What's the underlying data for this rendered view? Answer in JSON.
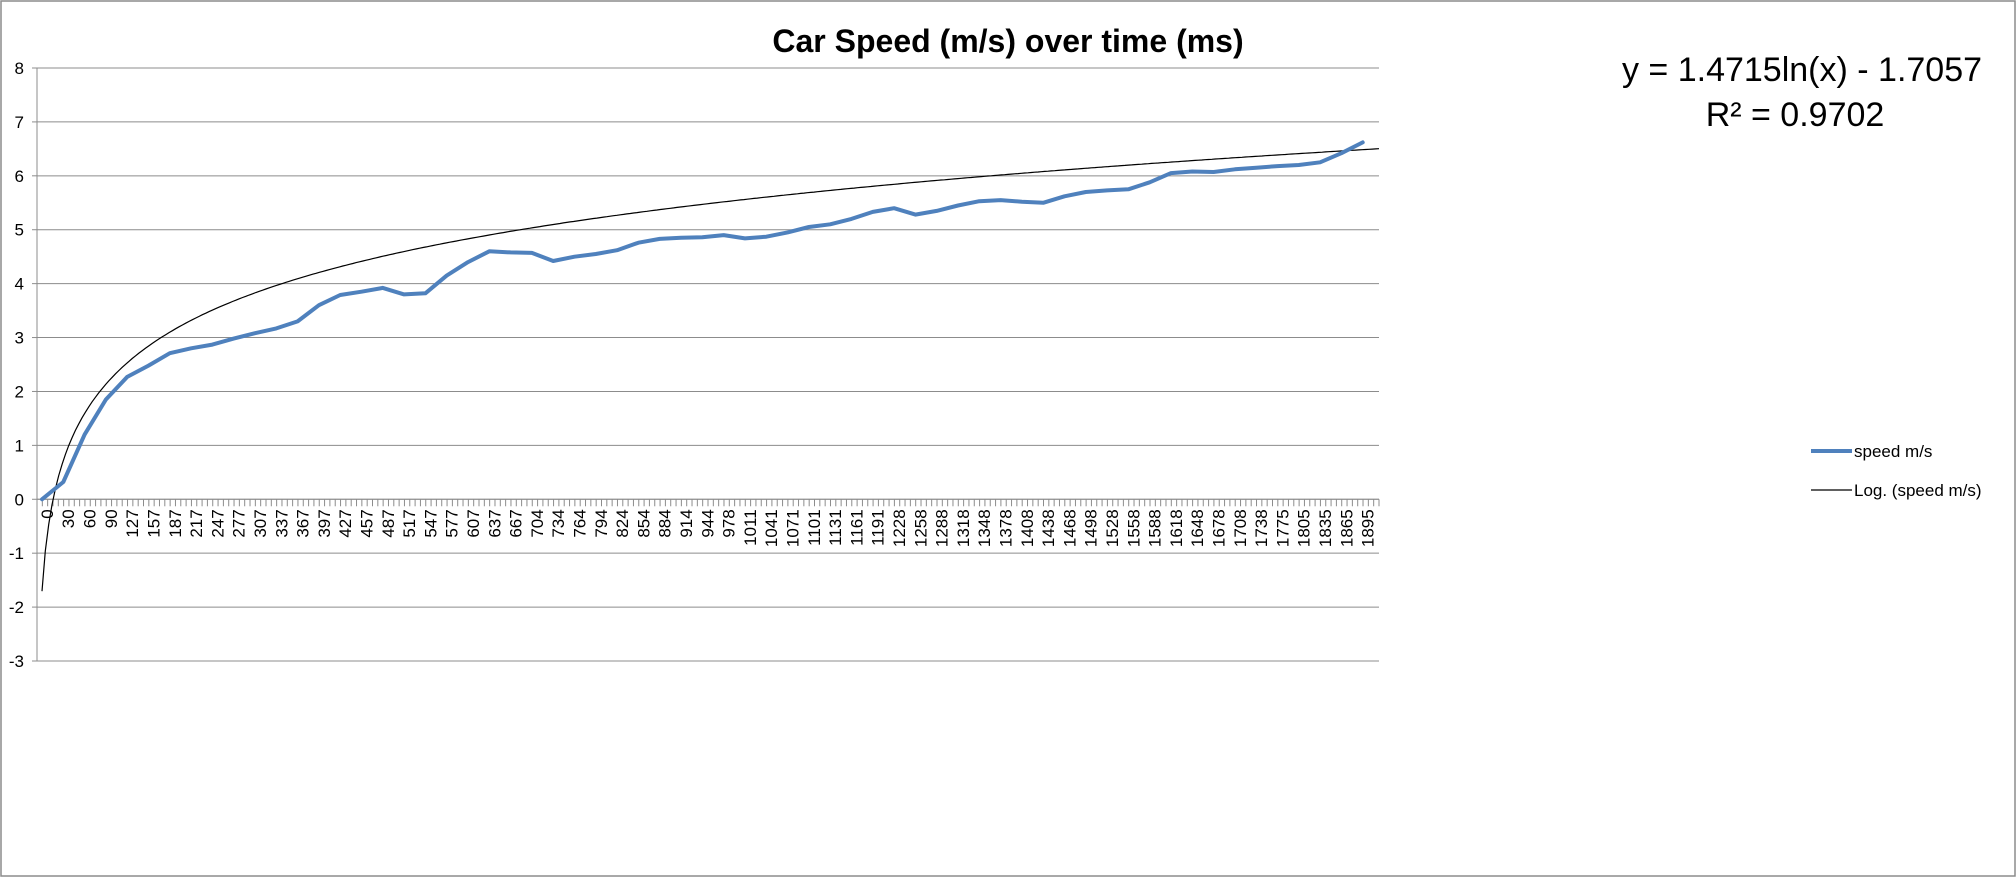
{
  "chart_data": {
    "type": "line",
    "title": "Car Speed (m/s) over time (ms)",
    "xlabel": "",
    "ylabel": "",
    "ylim": [
      -3,
      8
    ],
    "yticks": [
      "8",
      "7",
      "6",
      "5",
      "4",
      "3",
      "2",
      "1",
      "0",
      "-1",
      "-2",
      "-3"
    ],
    "grid": true,
    "legend_position": "right",
    "categories": [
      "0",
      "30",
      "60",
      "90",
      "127",
      "157",
      "187",
      "217",
      "247",
      "277",
      "307",
      "337",
      "367",
      "397",
      "427",
      "457",
      "487",
      "517",
      "547",
      "577",
      "607",
      "637",
      "667",
      "704",
      "734",
      "764",
      "794",
      "824",
      "854",
      "884",
      "914",
      "944",
      "978",
      "1011",
      "1041",
      "1071",
      "1101",
      "1131",
      "1161",
      "1191",
      "1228",
      "1258",
      "1288",
      "1318",
      "1348",
      "1378",
      "1408",
      "1438",
      "1468",
      "1498",
      "1528",
      "1558",
      "1588",
      "1618",
      "1648",
      "1678",
      "1708",
      "1738",
      "1775",
      "1805",
      "1835",
      "1865",
      "1895"
    ],
    "series": [
      {
        "name": "speed m/s",
        "color": "#4f81bd",
        "values": [
          0.0,
          0.32,
          1.2,
          1.85,
          2.27,
          2.48,
          2.71,
          2.8,
          2.87,
          2.98,
          3.08,
          3.17,
          3.3,
          3.6,
          3.79,
          3.85,
          3.92,
          3.8,
          3.82,
          4.15,
          4.4,
          4.6,
          4.58,
          4.57,
          4.42,
          4.5,
          4.55,
          4.62,
          4.76,
          4.83,
          4.85,
          4.86,
          4.9,
          4.84,
          4.87,
          4.95,
          5.05,
          5.1,
          5.2,
          5.33,
          5.4,
          5.28,
          5.35,
          5.45,
          5.53,
          5.55,
          5.52,
          5.5,
          5.62,
          5.7,
          5.73,
          5.75,
          5.88,
          6.05,
          6.08,
          6.07,
          6.12,
          6.15,
          6.18,
          6.2,
          6.25,
          6.42,
          6.62
        ]
      },
      {
        "name": "Log. (speed m/s)",
        "color": "#000000",
        "trendline": {
          "kind": "log",
          "a": 1.4715,
          "b": -1.7057
        }
      }
    ],
    "annotations": {
      "equation": "y = 1.4715ln(x) - 1.7057",
      "r_squared": "R² = 0.9702"
    }
  }
}
